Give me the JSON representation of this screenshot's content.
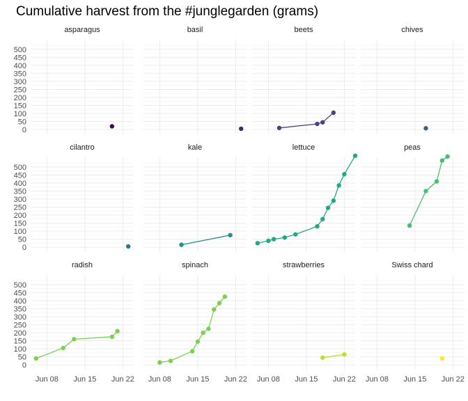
{
  "chart_data": {
    "type": "line",
    "title": "Cumulative harvest from the #junglegarden (grams)",
    "xlabel": "",
    "ylabel": "",
    "x_ticks": [
      "Jun 08",
      "Jun 15",
      "Jun 22"
    ],
    "y_ticks": [
      0,
      50,
      100,
      150,
      200,
      250,
      300,
      350,
      400,
      450,
      500
    ],
    "ylim": [
      -30,
      560
    ],
    "xlim": [
      "2020-06-05",
      "2020-06-24"
    ],
    "grid": true,
    "legend": "none",
    "panels": [
      {
        "name": "asparagus",
        "color": "#440154",
        "points": [
          {
            "x": "2020-06-20",
            "y": 20
          }
        ]
      },
      {
        "name": "basil",
        "color": "#482576",
        "points": [
          {
            "x": "2020-06-23",
            "y": 5
          }
        ]
      },
      {
        "name": "beets",
        "color": "#414487",
        "points": [
          {
            "x": "2020-06-10",
            "y": 10
          },
          {
            "x": "2020-06-17",
            "y": 35
          },
          {
            "x": "2020-06-18",
            "y": 45
          },
          {
            "x": "2020-06-20",
            "y": 105
          }
        ]
      },
      {
        "name": "chives",
        "color": "#35608d",
        "points": [
          {
            "x": "2020-06-17",
            "y": 8
          }
        ]
      },
      {
        "name": "cilantro",
        "color": "#2a788e",
        "points": [
          {
            "x": "2020-06-23",
            "y": 5
          }
        ]
      },
      {
        "name": "kale",
        "color": "#21908d",
        "points": [
          {
            "x": "2020-06-12",
            "y": 15
          },
          {
            "x": "2020-06-21",
            "y": 75
          }
        ]
      },
      {
        "name": "lettuce",
        "color": "#22a884",
        "points": [
          {
            "x": "2020-06-06",
            "y": 25
          },
          {
            "x": "2020-06-08",
            "y": 40
          },
          {
            "x": "2020-06-09",
            "y": 50
          },
          {
            "x": "2020-06-11",
            "y": 60
          },
          {
            "x": "2020-06-13",
            "y": 80
          },
          {
            "x": "2020-06-17",
            "y": 130
          },
          {
            "x": "2020-06-18",
            "y": 175
          },
          {
            "x": "2020-06-19",
            "y": 245
          },
          {
            "x": "2020-06-20",
            "y": 290
          },
          {
            "x": "2020-06-21",
            "y": 385
          },
          {
            "x": "2020-06-22",
            "y": 455
          },
          {
            "x": "2020-06-24",
            "y": 570
          }
        ]
      },
      {
        "name": "peas",
        "color": "#43bf71",
        "points": [
          {
            "x": "2020-06-14",
            "y": 135
          },
          {
            "x": "2020-06-17",
            "y": 350
          },
          {
            "x": "2020-06-19",
            "y": 410
          },
          {
            "x": "2020-06-20",
            "y": 540
          },
          {
            "x": "2020-06-21",
            "y": 565
          }
        ]
      },
      {
        "name": "radish",
        "color": "#7ad151",
        "points": [
          {
            "x": "2020-06-06",
            "y": 40
          },
          {
            "x": "2020-06-11",
            "y": 105
          },
          {
            "x": "2020-06-13",
            "y": 160
          },
          {
            "x": "2020-06-20",
            "y": 175
          },
          {
            "x": "2020-06-21",
            "y": 210
          }
        ]
      },
      {
        "name": "spinach",
        "color": "#7ad151",
        "points": [
          {
            "x": "2020-06-08",
            "y": 15
          },
          {
            "x": "2020-06-10",
            "y": 25
          },
          {
            "x": "2020-06-14",
            "y": 85
          },
          {
            "x": "2020-06-15",
            "y": 145
          },
          {
            "x": "2020-06-16",
            "y": 200
          },
          {
            "x": "2020-06-17",
            "y": 225
          },
          {
            "x": "2020-06-18",
            "y": 345
          },
          {
            "x": "2020-06-19",
            "y": 385
          },
          {
            "x": "2020-06-20",
            "y": 425
          }
        ]
      },
      {
        "name": "strawberries",
        "color": "#bddf26",
        "points": [
          {
            "x": "2020-06-18",
            "y": 45
          },
          {
            "x": "2020-06-22",
            "y": 65
          }
        ]
      },
      {
        "name": "Swiss chard",
        "color": "#fde725",
        "points": [
          {
            "x": "2020-06-20",
            "y": 40
          }
        ]
      }
    ]
  }
}
